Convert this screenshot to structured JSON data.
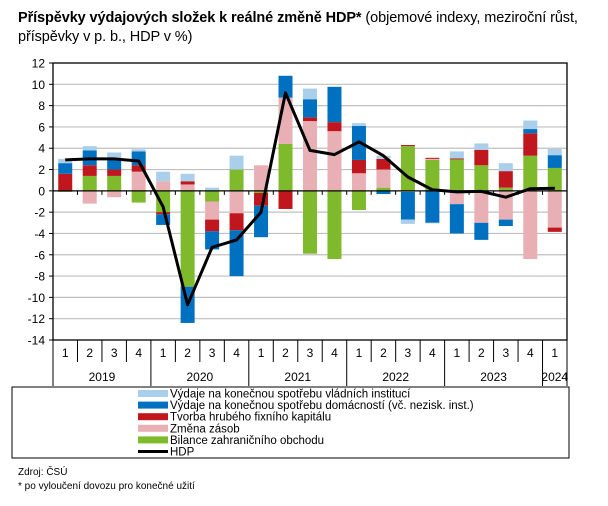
{
  "title": {
    "bold": "Příspěvky výdajových složek k reálné změně HDP*",
    "normal": " (objemové indexy, meziroční růst, příspěvky v p. b., HDP v %)"
  },
  "footer": {
    "source": "Zdroj: ČSÚ",
    "note": "* po vyloučení dovozu pro konečné užití"
  },
  "chart_data": {
    "type": "bar",
    "stacked": true,
    "title": "Příspěvky výdajových složek k reálné změně HDP* (objemové indexy, meziroční růst, příspěvky v p. b., HDP v %)",
    "xlabel": "",
    "ylabel": "",
    "ylim": [
      -14,
      12
    ],
    "yticks": [
      12,
      10,
      8,
      6,
      4,
      2,
      0,
      -2,
      -4,
      -6,
      -8,
      -10,
      -12,
      -14
    ],
    "grid": true,
    "legend_position": "bottom",
    "categories": [
      "1",
      "2",
      "3",
      "4",
      "1",
      "2",
      "3",
      "4",
      "1",
      "2",
      "3",
      "4",
      "1",
      "2",
      "3",
      "4",
      "1",
      "2",
      "3",
      "4",
      "1"
    ],
    "years": [
      {
        "label": "2019",
        "quarters": 4
      },
      {
        "label": "2020",
        "quarters": 4
      },
      {
        "label": "2021",
        "quarters": 4
      },
      {
        "label": "2022",
        "quarters": 4
      },
      {
        "label": "2023",
        "quarters": 4
      },
      {
        "label": "2024",
        "quarters": 1
      }
    ],
    "series": [
      {
        "name": "Bilance zahraničního obchodu",
        "color": "#7fba2c",
        "kind": "bar",
        "values": [
          -0.1,
          1.4,
          1.4,
          -1.1,
          -2.0,
          -9.0,
          -1.0,
          2.0,
          -0.2,
          4.4,
          -5.9,
          -6.4,
          -1.8,
          0.3,
          4.2,
          2.9,
          2.95,
          2.4,
          0.3,
          3.3,
          2.15
        ]
      },
      {
        "name": "Změna zásob",
        "color": "#e8b0b4",
        "kind": "bar",
        "values": [
          0.0,
          -1.2,
          -0.6,
          1.8,
          0.9,
          0.6,
          -1.7,
          -2.1,
          2.4,
          4.35,
          6.55,
          5.6,
          1.65,
          1.7,
          -0.1,
          0.1,
          -1.25,
          -3.0,
          -2.7,
          -6.4,
          -3.45
        ]
      },
      {
        "name": "Tvorba hrubého fixního kapitálu",
        "color": "#c0171f",
        "kind": "bar",
        "values": [
          1.6,
          1.0,
          0.6,
          0.6,
          -0.2,
          0.3,
          -1.1,
          -1.6,
          -1.2,
          -1.7,
          0.35,
          0.85,
          1.25,
          1.0,
          0.1,
          0.1,
          0.1,
          1.45,
          1.55,
          2.1,
          -0.4
        ]
      },
      {
        "name": "Výdaje na konečnou spotřebu domácností (vč. nezisk. inst.)",
        "color": "#0070c0",
        "kind": "bar",
        "values": [
          1.0,
          1.4,
          1.1,
          1.3,
          -1.0,
          -3.4,
          -1.7,
          -4.3,
          -2.95,
          2.05,
          1.7,
          3.3,
          3.2,
          -0.3,
          -2.6,
          -3.0,
          -2.75,
          -1.6,
          -0.6,
          0.4,
          1.2
        ]
      },
      {
        "name": "Výdaje na konečnou spotřebu vládních institucí",
        "color": "#a9cfea",
        "kind": "bar",
        "values": [
          0.4,
          0.4,
          0.5,
          0.2,
          0.9,
          0.7,
          0.3,
          1.3,
          0.0,
          0.0,
          1.0,
          0.05,
          0.25,
          0.3,
          -0.4,
          -0.05,
          0.65,
          0.6,
          0.75,
          0.8,
          0.6
        ]
      },
      {
        "name": "HDP",
        "color": "#000000",
        "kind": "line",
        "values": [
          2.9,
          3.0,
          3.0,
          2.8,
          -1.5,
          -10.7,
          -5.3,
          -4.6,
          -2.0,
          9.2,
          3.8,
          3.4,
          4.6,
          3.3,
          1.3,
          0.1,
          -0.1,
          -0.05,
          -0.6,
          0.2,
          0.25
        ]
      }
    ],
    "legend": [
      {
        "label": "Výdaje na konečnou spotřebu vládních institucí",
        "color": "#a9cfea",
        "kind": "bar"
      },
      {
        "label": "Výdaje na konečnou spotřebu domácností (vč. nezisk. inst.)",
        "color": "#0070c0",
        "kind": "bar"
      },
      {
        "label": "Tvorba hrubého fixního kapitálu",
        "color": "#c0171f",
        "kind": "bar"
      },
      {
        "label": "Změna zásob",
        "color": "#e8b0b4",
        "kind": "bar"
      },
      {
        "label": "Bilance zahraničního obchodu",
        "color": "#7fba2c",
        "kind": "bar"
      },
      {
        "label": "HDP",
        "color": "#000000",
        "kind": "line"
      }
    ]
  }
}
